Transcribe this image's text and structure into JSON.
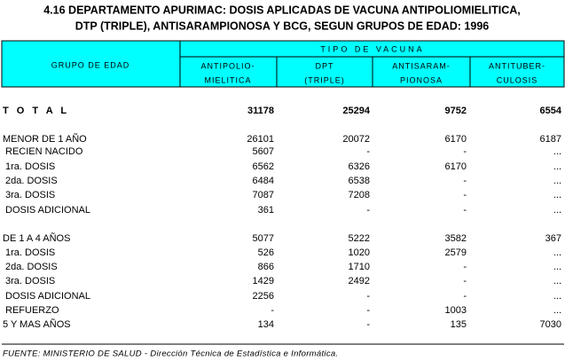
{
  "header": {
    "title_lines": [
      "4.16  DEPARTAMENTO APURIMAC: DOSIS APLICADAS DE VACUNA ANTIPOLIOMIELITICA,",
      "DTP (TRIPLE), ANTISARAMPIONOSA Y BCG, SEGUN GRUPOS DE EDAD: 1996"
    ]
  },
  "table": {
    "group_header": "GRUPO DE EDAD",
    "span_header": "TIPO DE VACUNA",
    "columns": [
      [
        "ANTIPOLIO-",
        "MIELITICA"
      ],
      [
        "DPT",
        "(TRIPLE)"
      ],
      [
        "ANTISARAM-",
        "PIONOSA"
      ],
      [
        "ANTITUBER-",
        "CULOSIS"
      ]
    ],
    "rows": [
      {
        "label": "T O T A L",
        "values": [
          31178,
          25294,
          9752,
          6554
        ]
      },
      {
        "label": "MENOR DE 1 AÑO",
        "values": [
          26101,
          20072,
          6170,
          6187
        ]
      },
      {
        "label": "RECIEN NACIDO",
        "values": [
          5607,
          "-",
          "-",
          "..."
        ]
      },
      {
        "label": "1ra. DOSIS",
        "values": [
          6562,
          6326,
          6170,
          "..."
        ]
      },
      {
        "label": "2da. DOSIS",
        "values": [
          6484,
          6538,
          "-",
          "..."
        ]
      },
      {
        "label": "3ra. DOSIS",
        "values": [
          7087,
          7208,
          "-",
          "..."
        ]
      },
      {
        "label": "DOSIS ADICIONAL",
        "values": [
          361,
          "-",
          "-",
          "..."
        ]
      },
      {
        "label": "DE 1 A 4 AÑOS",
        "values": [
          5077,
          5222,
          3582,
          367
        ]
      },
      {
        "label": "1ra. DOSIS",
        "values": [
          526,
          1020,
          2579,
          "..."
        ]
      },
      {
        "label": "2da. DOSIS",
        "values": [
          866,
          1710,
          "-",
          "..."
        ]
      },
      {
        "label": "3ra. DOSIS",
        "values": [
          1429,
          2492,
          "-",
          "..."
        ]
      },
      {
        "label": "DOSIS ADICIONAL",
        "values": [
          2256,
          "-",
          "-",
          "..."
        ]
      },
      {
        "label": "REFUERZO",
        "values": [
          "-",
          "-",
          1003,
          "..."
        ]
      },
      {
        "label": "5 Y MAS AÑOS",
        "values": [
          134,
          "-",
          135,
          7030
        ]
      }
    ]
  },
  "footer": {
    "source": "FUENTE: MINISTERIO DE SALUD - Dirección Técnica de Estadística e Informática."
  }
}
